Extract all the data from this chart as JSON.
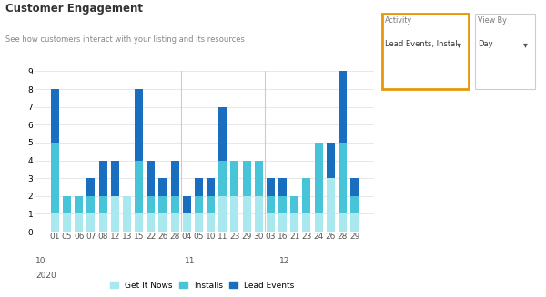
{
  "title": "Customer Engagement",
  "subtitle": "See how customers interact with your listing and its resources",
  "x_labels": [
    "01",
    "05",
    "06",
    "07",
    "08",
    "12",
    "13",
    "15",
    "22",
    "26",
    "28",
    "04",
    "05",
    "10",
    "11",
    "23",
    "29",
    "30",
    "03",
    "16",
    "21",
    "23",
    "24",
    "26",
    "28",
    "29"
  ],
  "month_labels": [
    {
      "label": "10",
      "index": 0
    },
    {
      "label": "11",
      "index": 11
    },
    {
      "label": "12",
      "index": 18
    }
  ],
  "year_label": "2020",
  "get_it_now": [
    1,
    1,
    1,
    1,
    1,
    2,
    2,
    1,
    1,
    1,
    1,
    1,
    1,
    1,
    2,
    2,
    2,
    2,
    1,
    1,
    1,
    1,
    1,
    3,
    1,
    1
  ],
  "installs": [
    4,
    1,
    1,
    1,
    1,
    0,
    0,
    3,
    1,
    1,
    1,
    0,
    1,
    1,
    2,
    2,
    2,
    2,
    1,
    1,
    1,
    2,
    4,
    0,
    4,
    1
  ],
  "lead_events": [
    3,
    0,
    0,
    1,
    2,
    2,
    0,
    4,
    2,
    1,
    2,
    1,
    1,
    1,
    3,
    0,
    0,
    0,
    1,
    1,
    0,
    0,
    0,
    2,
    4,
    1
  ],
  "color_get_it_now": "#a8e8ee",
  "color_installs": "#48c4d8",
  "color_lead_events": "#1a6ec0",
  "ylim": [
    0,
    9
  ],
  "yticks": [
    0,
    1,
    2,
    3,
    4,
    5,
    6,
    7,
    8,
    9
  ],
  "bg_color": "#ffffff",
  "grid_color": "#e8e8e8",
  "sep_color": "#cccccc",
  "activity_box_color": "#e8960a",
  "activity_label": "Activity",
  "activity_value": "Lead Events, Instal",
  "viewby_label": "View By",
  "viewby_value": "Day"
}
